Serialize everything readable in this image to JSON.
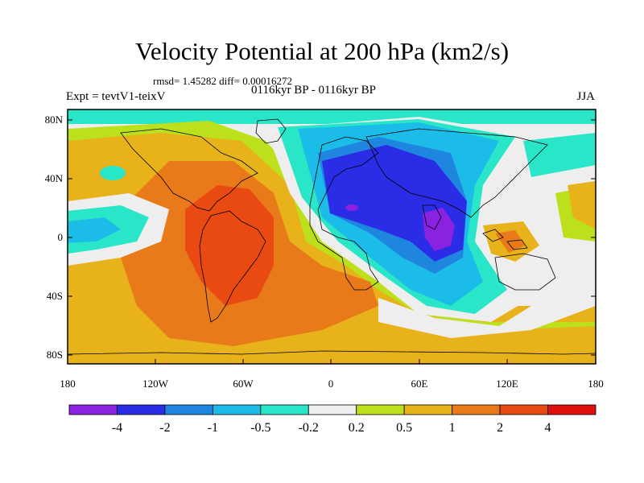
{
  "title": "Velocity Potential at 200 hPa (km2/s)",
  "stats": "rmsd= 1.45282 diff= 0.00016272",
  "subtitle": "0116kyr BP - 0116kyr BP",
  "experiment": "Expt = tevtV1-teixV",
  "season": "JJA",
  "lat_ticks": [
    "80N",
    "40N",
    "0",
    "40S",
    "80S"
  ],
  "lon_ticks": [
    "180",
    "120W",
    "60W",
    "0",
    "60E",
    "120E",
    "180"
  ],
  "colorbar": {
    "labels": [
      "-4",
      "-2",
      "-1",
      "-0.5",
      "-0.2",
      "0.2",
      "0.5",
      "1",
      "2",
      "4"
    ],
    "colors": [
      "#8a22e0",
      "#2b2de6",
      "#1f86e0",
      "#1cbce8",
      "#2ae6c8",
      "#eeeeee",
      "#bde01c",
      "#e8b21a",
      "#e87a1a",
      "#e84a12",
      "#e01010"
    ]
  },
  "field_colors": {
    "ocean_bg": "#eeeeee",
    "coast": "#000000"
  }
}
